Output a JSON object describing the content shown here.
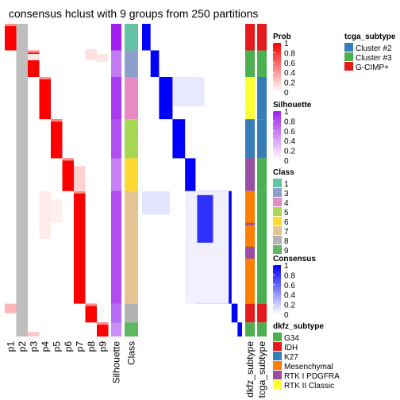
{
  "chart_data": {
    "type": "heatmap",
    "title": "consensus hclust with 9 groups from 250 partitions",
    "prob_columns": [
      "p1",
      "p2",
      "p3",
      "p4",
      "p5",
      "p6",
      "p7",
      "p8",
      "p9"
    ],
    "annotation_columns": [
      "Silhouette",
      "Class"
    ],
    "subtype_columns": [
      "dkfz_subtype",
      "tcga_subtype"
    ],
    "legends": [
      {
        "title": "Prob",
        "ticks": [
          "1",
          "0.8",
          "0.6",
          "0.4",
          "0.2",
          "0"
        ],
        "colors": [
          "#ffffff",
          "#ff0000"
        ]
      },
      {
        "title": "Silhouette",
        "ticks": [
          "1",
          "0.8",
          "0.6",
          "0.4",
          "0.2",
          "0"
        ],
        "colors": [
          "#ffffff",
          "#a020f0"
        ]
      },
      {
        "title": "Class",
        "entries": [
          {
            "label": "1",
            "color": "#66c2a5"
          },
          {
            "label": "3",
            "color": "#8da0cb"
          },
          {
            "label": "4",
            "color": "#e78ac3"
          },
          {
            "label": "5",
            "color": "#a6d854"
          },
          {
            "label": "6",
            "color": "#ffd92f"
          },
          {
            "label": "7",
            "color": "#e5c494"
          },
          {
            "label": "8",
            "color": "#b3b3b3"
          },
          {
            "label": "9",
            "color": "#5fb85f"
          }
        ]
      },
      {
        "title": "Consensus",
        "ticks": [
          "1",
          "0.8",
          "0.6",
          "0.4",
          "0.2",
          "0"
        ],
        "colors": [
          "#ffffff",
          "#0000ff"
        ]
      },
      {
        "title": "dkfz_subtype",
        "entries": [
          {
            "label": "G34",
            "color": "#4caf50"
          },
          {
            "label": "IDH",
            "color": "#e41a1c"
          },
          {
            "label": "K27",
            "color": "#377eb8"
          },
          {
            "label": "Mesenchymal",
            "color": "#ff7f00"
          },
          {
            "label": "RTK I PDGFRA",
            "color": "#984ea3"
          },
          {
            "label": "RTK II Classic",
            "color": "#ffff33"
          }
        ]
      },
      {
        "title": "tcga_subtype",
        "entries": [
          {
            "label": "Cluster #2",
            "color": "#377eb8"
          },
          {
            "label": "Cluster #3",
            "color": "#4caf50"
          },
          {
            "label": "G-CIMP+",
            "color": "#e41a1c"
          }
        ]
      }
    ]
  }
}
